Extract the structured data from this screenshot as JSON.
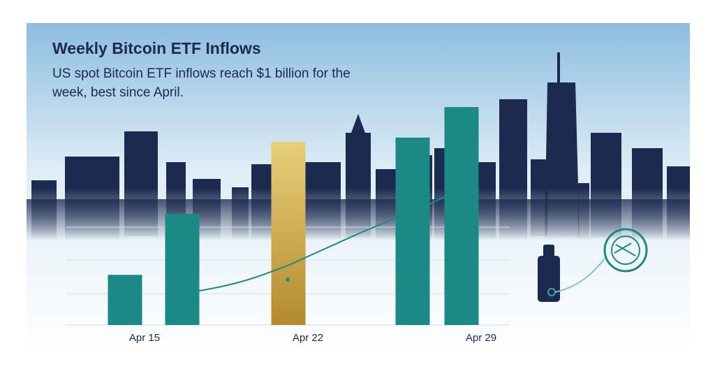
{
  "chart_data": {
    "type": "bar",
    "title": "Weekly Bitcoin ETF Inflows",
    "subtitle": "US spot Bitcoin ETF inflows reach $1 billion for the week, best since April.",
    "categories": [
      "Apr 15",
      null,
      "Apr 22",
      null,
      "Apr 29"
    ],
    "values": [
      0.23,
      0.51,
      0.84,
      0.86,
      1.0
    ],
    "colors": [
      "#1b8a86",
      "#1b8a86",
      "#c9a64c",
      "#1b8a86",
      "#1b8a86"
    ],
    "ylim": [
      0,
      1.1
    ]
  }
}
